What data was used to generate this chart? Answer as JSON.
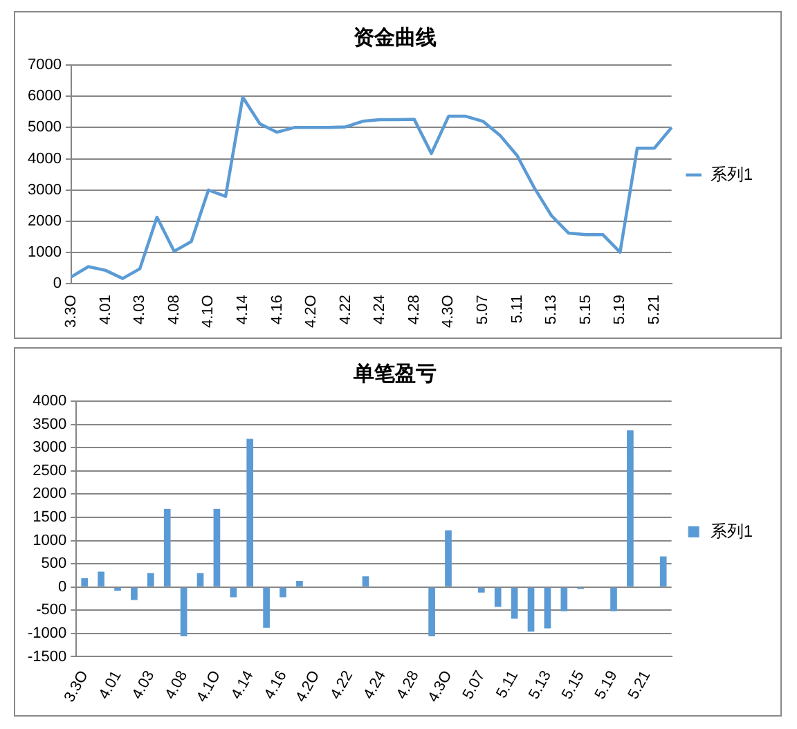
{
  "chart_data": [
    {
      "type": "line",
      "title": "资金曲线",
      "categories": [
        "3.3O",
        null,
        "4.01",
        null,
        "4.03",
        null,
        "4.08",
        null,
        "4.1O",
        null,
        "4.14",
        null,
        "4.16",
        null,
        "4.2O",
        null,
        "4.22",
        null,
        "4.24",
        null,
        "4.28",
        null,
        "4.3O",
        null,
        "5.07",
        null,
        "5.11",
        null,
        "5.13",
        null,
        "5.15",
        null,
        "5.19",
        null,
        "5.21",
        null
      ],
      "series": [
        {
          "name": "系列1",
          "color": "#5b9bd5",
          "values": [
            220,
            550,
            430,
            170,
            480,
            2130,
            1040,
            1350,
            3000,
            2800,
            5970,
            5120,
            4850,
            5000,
            5000,
            5000,
            5020,
            5200,
            5250,
            5250,
            5260,
            4170,
            5360,
            5360,
            5200,
            4750,
            4100,
            3070,
            2180,
            1620,
            1570,
            1570,
            1010,
            4340,
            4340,
            5000
          ]
        }
      ],
      "ylim": [
        0,
        7000
      ],
      "yticks": [
        0,
        1000,
        2000,
        3000,
        4000,
        5000,
        6000,
        7000
      ],
      "grid": "y",
      "legend": "right",
      "marker": "none"
    },
    {
      "type": "bar",
      "title": "单笔盈亏",
      "categories": [
        "3.3O",
        null,
        "4.01",
        null,
        "4.03",
        null,
        "4.08",
        null,
        "4.1O",
        null,
        "4.14",
        null,
        "4.16",
        null,
        "4.2O",
        null,
        "4.22",
        null,
        "4.24",
        null,
        "4.28",
        null,
        "4.3O",
        null,
        "5.07",
        null,
        "5.11",
        null,
        "5.13",
        null,
        "5.15",
        null,
        "5.19",
        null,
        "5.21",
        null
      ],
      "series": [
        {
          "name": "系列1",
          "color": "#5b9bd5",
          "values": [
            190,
            330,
            -80,
            -280,
            300,
            1680,
            -1060,
            300,
            1680,
            -220,
            3190,
            -880,
            -220,
            130,
            0,
            0,
            0,
            230,
            0,
            0,
            0,
            -1060,
            1220,
            0,
            -120,
            -430,
            -680,
            -960,
            -890,
            -520,
            -40,
            0,
            -520,
            3370,
            0,
            660
          ]
        }
      ],
      "ylim": [
        -1500,
        4000
      ],
      "yticks": [
        -1500,
        -1000,
        -500,
        0,
        500,
        1000,
        1500,
        2000,
        2500,
        3000,
        3500,
        4000
      ],
      "grid": "y",
      "legend": "right"
    }
  ]
}
